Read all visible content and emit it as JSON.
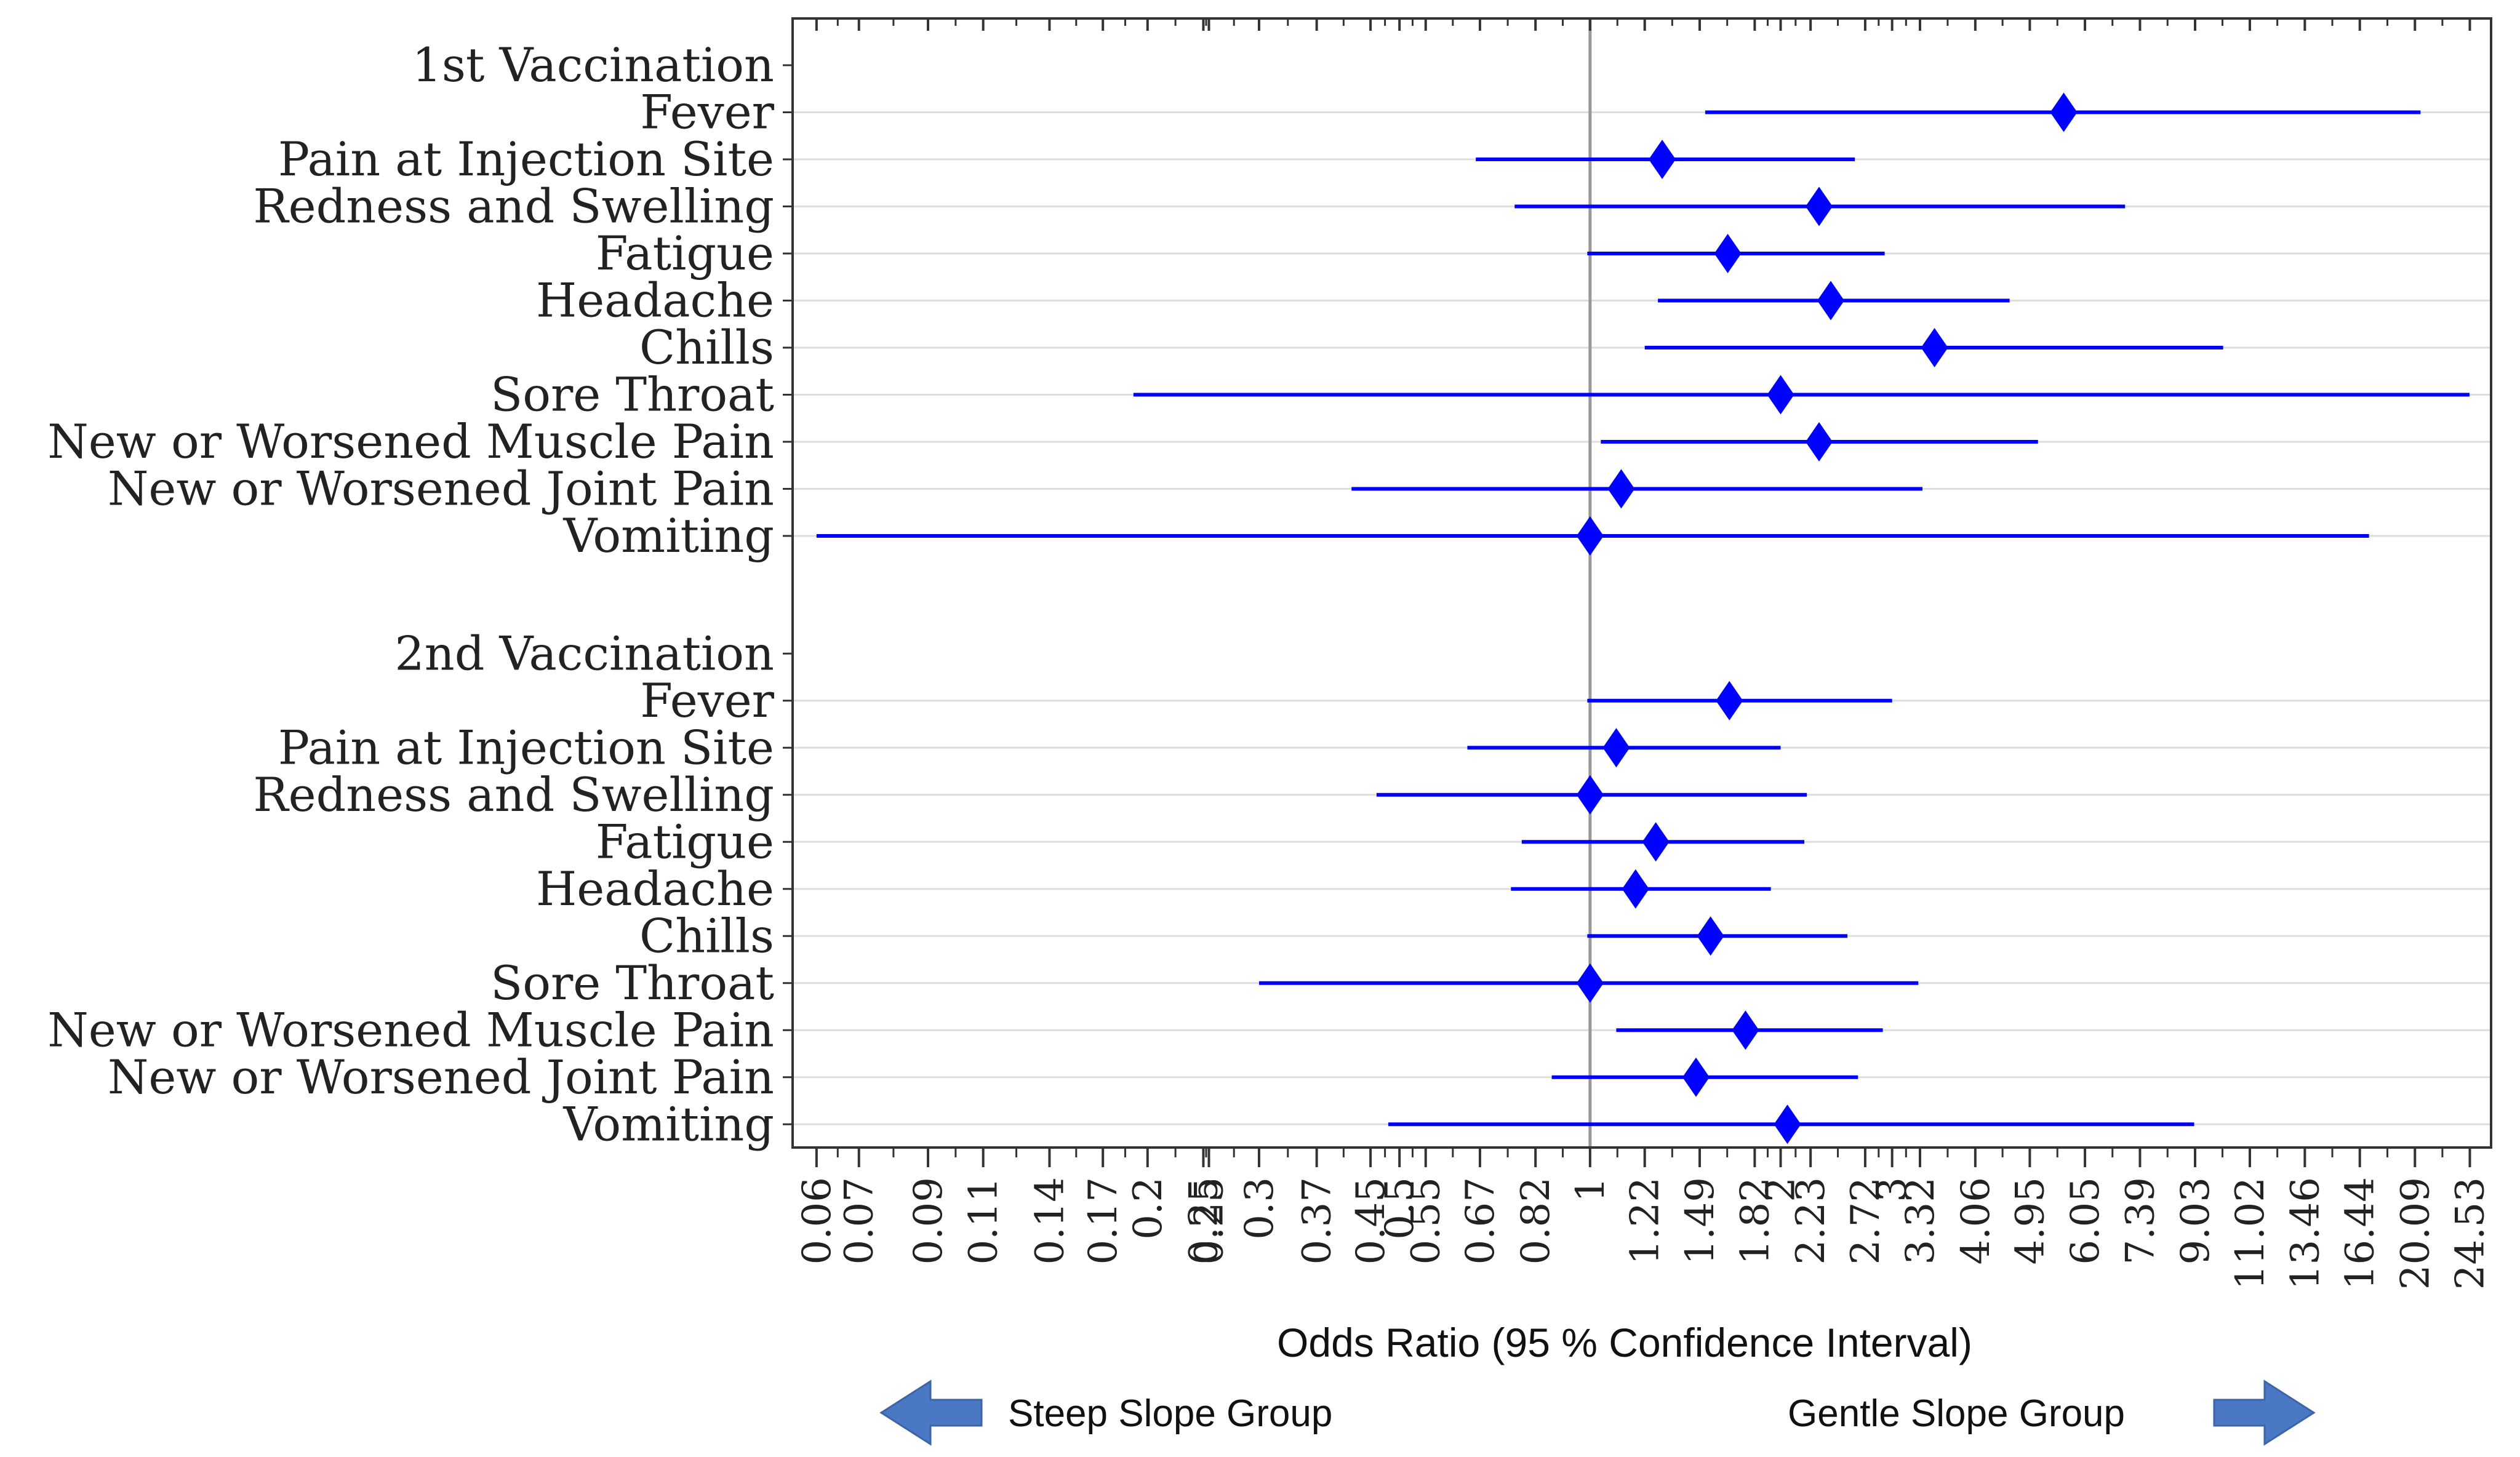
{
  "chart_data": {
    "type": "forest",
    "xlabel": "Odds Ratio (95 % Confidence Interval)",
    "x_scale": "log",
    "xlim": [
      0.055,
      26.5
    ],
    "reference_line": 1,
    "x_ticks": [
      "0.06",
      "0.07",
      "0.09",
      "0.11",
      "0.14",
      "0.17",
      "0.2",
      "0.25",
      "0.25",
      "0.3",
      "0.37",
      "0.45",
      "0.5",
      "0.55",
      "0.67",
      "0.82",
      "1",
      "1.22",
      "1.49",
      "1.82",
      "2",
      "2.23",
      "2.72",
      "3",
      "3.32",
      "4.06",
      "4.95",
      "6.05",
      "7.39",
      "9.03",
      "11.02",
      "13.46",
      "16.44",
      "20.09",
      "24.53"
    ],
    "x_tick_values": [
      0.06,
      0.07,
      0.09,
      0.11,
      0.14,
      0.17,
      0.2,
      0.245,
      0.25,
      0.3,
      0.37,
      0.45,
      0.5,
      0.55,
      0.67,
      0.82,
      1,
      1.22,
      1.49,
      1.82,
      2,
      2.23,
      2.72,
      3,
      3.32,
      4.06,
      4.95,
      6.05,
      7.39,
      9.03,
      11.02,
      13.46,
      16.44,
      20.09,
      24.53
    ],
    "series_color": "#0000ff",
    "groups": [
      {
        "name": "1st Vaccination",
        "rows": [
          {
            "label": "Fever",
            "or": 5.6,
            "lo": 1.52,
            "hi": 20.5
          },
          {
            "label": "Pain at Injection Site",
            "or": 1.3,
            "lo": 0.66,
            "hi": 2.62
          },
          {
            "label": "Redness and Swelling",
            "or": 2.3,
            "lo": 0.76,
            "hi": 7.0
          },
          {
            "label": "Fatigue",
            "or": 1.65,
            "lo": 0.99,
            "hi": 2.92
          },
          {
            "label": "Headache",
            "or": 2.4,
            "lo": 1.28,
            "hi": 4.6
          },
          {
            "label": "Chills",
            "or": 3.5,
            "lo": 1.22,
            "hi": 10.0
          },
          {
            "label": "Sore Throat",
            "or": 2.0,
            "lo": 0.19,
            "hi": 24.5
          },
          {
            "label": "New or Worsened Muscle Pain",
            "or": 2.3,
            "lo": 1.04,
            "hi": 5.1
          },
          {
            "label": "New or Worsened Joint Pain",
            "or": 1.12,
            "lo": 0.42,
            "hi": 3.35
          },
          {
            "label": "Vomiting",
            "or": 1.0,
            "lo": 0.06,
            "hi": 17.0
          }
        ]
      },
      {
        "name": "2nd Vaccination",
        "rows": [
          {
            "label": "Fever",
            "or": 1.66,
            "lo": 0.99,
            "hi": 3.0
          },
          {
            "label": "Pain at Injection Site",
            "or": 1.1,
            "lo": 0.64,
            "hi": 2.0
          },
          {
            "label": "Redness and Swelling",
            "or": 1.0,
            "lo": 0.46,
            "hi": 2.2
          },
          {
            "label": "Fatigue",
            "or": 1.27,
            "lo": 0.78,
            "hi": 2.18
          },
          {
            "label": "Headache",
            "or": 1.18,
            "lo": 0.75,
            "hi": 1.93
          },
          {
            "label": "Chills",
            "or": 1.55,
            "lo": 0.99,
            "hi": 2.55
          },
          {
            "label": "Sore Throat",
            "or": 1.0,
            "lo": 0.3,
            "hi": 3.3
          },
          {
            "label": "New or Worsened Muscle Pain",
            "or": 1.76,
            "lo": 1.1,
            "hi": 2.9
          },
          {
            "label": "New or Worsened Joint Pain",
            "or": 1.47,
            "lo": 0.87,
            "hi": 2.65
          },
          {
            "label": "Vomiting",
            "or": 2.05,
            "lo": 0.48,
            "hi": 9.0
          }
        ]
      }
    ],
    "legend": {
      "left_label": "Steep Slope Group",
      "right_label": "Gentle Slope Group"
    }
  },
  "colors": {
    "marker": "#0000ff",
    "arrow": "#4a78c2",
    "gridline": "#dddddd",
    "reference_line": "#999999"
  }
}
